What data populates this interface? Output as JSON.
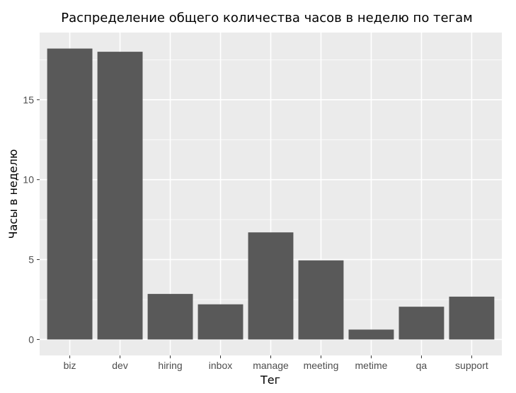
{
  "chart_data": {
    "type": "bar",
    "title": "Распределение общего количества часов в неделю по тегам",
    "xlabel": "Тег",
    "ylabel": "Часы в неделю",
    "categories": [
      "biz",
      "dev",
      "hiring",
      "inbox",
      "manage",
      "meeting",
      "metime",
      "qa",
      "support"
    ],
    "values": [
      18.2,
      18.0,
      2.85,
      2.2,
      6.7,
      4.95,
      0.62,
      2.05,
      2.68
    ],
    "ylim": [
      -1.0,
      19.2
    ],
    "yticks": [
      0,
      5,
      10,
      15
    ],
    "grid": true,
    "legend": "none"
  },
  "colors": {
    "panel_background": "#ebebeb",
    "grid_major": "#ffffff",
    "bar_fill": "#595959",
    "tick_mark": "#333333",
    "tick_label": "#4d4d4d"
  }
}
